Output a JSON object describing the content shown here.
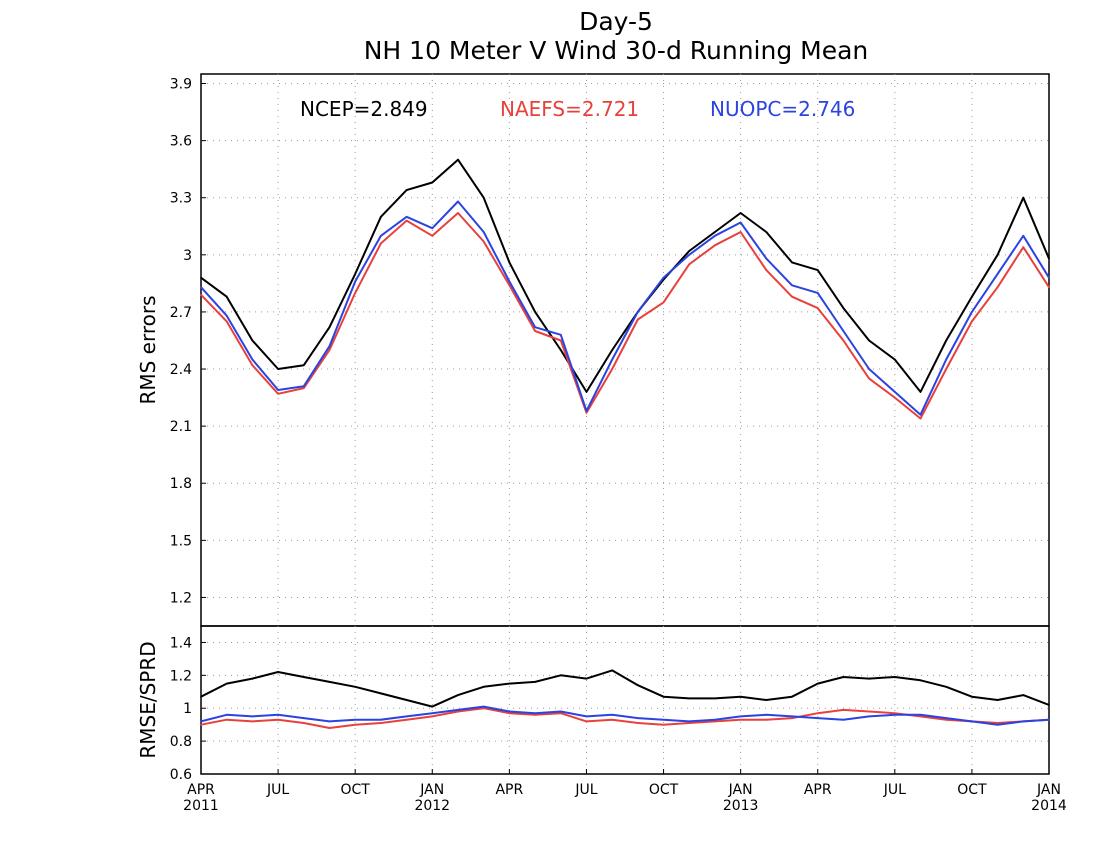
{
  "title_line1": "Day-5",
  "title_line2": "NH 10 Meter V Wind 30-d Running Mean",
  "colors": {
    "ncep": "#000000",
    "naefs": "#e8413c",
    "nuopc": "#2b43e0",
    "grid": "#9a9a9a"
  },
  "chart_data": [
    {
      "type": "line",
      "panel": "top",
      "ylabel": "RMS errors",
      "ylim": [
        1.05,
        3.95
      ],
      "yticks": [
        "1.2",
        "1.5",
        "1.8",
        "2.1",
        "2.4",
        "2.7",
        "3",
        "3.3",
        "3.6",
        "3.9"
      ],
      "legend": [
        {
          "label": "NCEP=2.849",
          "color": "#000000"
        },
        {
          "label": "NAEFS=2.721",
          "color": "#e8413c"
        },
        {
          "label": "NUOPC=2.746",
          "color": "#2b43e0"
        }
      ],
      "x": [
        "2011-04",
        "2011-05",
        "2011-06",
        "2011-07",
        "2011-08",
        "2011-09",
        "2011-10",
        "2011-11",
        "2011-12",
        "2012-01",
        "2012-02",
        "2012-03",
        "2012-04",
        "2012-05",
        "2012-06",
        "2012-07",
        "2012-08",
        "2012-09",
        "2012-10",
        "2012-11",
        "2012-12",
        "2013-01",
        "2013-02",
        "2013-03",
        "2013-04",
        "2013-05",
        "2013-06",
        "2013-07",
        "2013-08",
        "2013-09",
        "2013-10",
        "2013-11",
        "2013-12",
        "2014-01"
      ],
      "series": [
        {
          "name": "NCEP",
          "color": "#000000",
          "values": [
            2.88,
            2.78,
            2.55,
            2.4,
            2.42,
            2.62,
            2.9,
            3.2,
            3.34,
            3.38,
            3.5,
            3.3,
            2.96,
            2.7,
            2.5,
            2.28,
            2.5,
            2.7,
            2.87,
            3.02,
            3.12,
            3.22,
            3.12,
            2.96,
            2.92,
            2.72,
            2.55,
            2.45,
            2.28,
            2.55,
            2.78,
            3.0,
            3.3,
            2.98
          ]
        },
        {
          "name": "NAEFS",
          "color": "#e8413c",
          "values": [
            2.79,
            2.65,
            2.42,
            2.27,
            2.3,
            2.5,
            2.8,
            3.06,
            3.18,
            3.1,
            3.22,
            3.07,
            2.84,
            2.6,
            2.55,
            2.17,
            2.4,
            2.66,
            2.75,
            2.95,
            3.05,
            3.12,
            2.92,
            2.78,
            2.72,
            2.55,
            2.35,
            2.25,
            2.14,
            2.4,
            2.65,
            2.83,
            3.04,
            2.83
          ]
        },
        {
          "name": "NUOPC",
          "color": "#2b43e0",
          "values": [
            2.83,
            2.68,
            2.45,
            2.29,
            2.31,
            2.52,
            2.86,
            3.1,
            3.2,
            3.14,
            3.28,
            3.12,
            2.86,
            2.62,
            2.58,
            2.18,
            2.45,
            2.7,
            2.88,
            3.0,
            3.1,
            3.17,
            2.98,
            2.84,
            2.8,
            2.6,
            2.4,
            2.28,
            2.16,
            2.45,
            2.7,
            2.9,
            3.1,
            2.88
          ]
        }
      ]
    },
    {
      "type": "line",
      "panel": "bottom",
      "ylabel": "RMSE/SPRD",
      "ylim": [
        0.6,
        1.5
      ],
      "yticks": [
        "0.6",
        "0.8",
        "1",
        "1.2",
        "1.4"
      ],
      "x": [
        "2011-04",
        "2011-05",
        "2011-06",
        "2011-07",
        "2011-08",
        "2011-09",
        "2011-10",
        "2011-11",
        "2011-12",
        "2012-01",
        "2012-02",
        "2012-03",
        "2012-04",
        "2012-05",
        "2012-06",
        "2012-07",
        "2012-08",
        "2012-09",
        "2012-10",
        "2012-11",
        "2012-12",
        "2013-01",
        "2013-02",
        "2013-03",
        "2013-04",
        "2013-05",
        "2013-06",
        "2013-07",
        "2013-08",
        "2013-09",
        "2013-10",
        "2013-11",
        "2013-12",
        "2014-01"
      ],
      "xtick_labels": [
        {
          "month": "APR",
          "year": "2011"
        },
        {
          "month": "JUL",
          "year": ""
        },
        {
          "month": "OCT",
          "year": ""
        },
        {
          "month": "JAN",
          "year": "2012"
        },
        {
          "month": "APR",
          "year": ""
        },
        {
          "month": "JUL",
          "year": ""
        },
        {
          "month": "OCT",
          "year": ""
        },
        {
          "month": "JAN",
          "year": "2013"
        },
        {
          "month": "APR",
          "year": ""
        },
        {
          "month": "JUL",
          "year": ""
        },
        {
          "month": "OCT",
          "year": ""
        },
        {
          "month": "JAN",
          "year": "2014"
        }
      ],
      "series": [
        {
          "name": "NCEP",
          "color": "#000000",
          "values": [
            1.07,
            1.15,
            1.18,
            1.22,
            1.19,
            1.16,
            1.13,
            1.09,
            1.05,
            1.01,
            1.08,
            1.13,
            1.15,
            1.16,
            1.2,
            1.18,
            1.23,
            1.14,
            1.07,
            1.06,
            1.06,
            1.07,
            1.05,
            1.07,
            1.15,
            1.19,
            1.18,
            1.19,
            1.17,
            1.13,
            1.07,
            1.05,
            1.08,
            1.02
          ]
        },
        {
          "name": "NAEFS",
          "color": "#e8413c",
          "values": [
            0.9,
            0.93,
            0.92,
            0.93,
            0.91,
            0.88,
            0.9,
            0.91,
            0.93,
            0.95,
            0.98,
            1.0,
            0.97,
            0.96,
            0.97,
            0.92,
            0.93,
            0.91,
            0.9,
            0.91,
            0.92,
            0.93,
            0.93,
            0.94,
            0.97,
            0.99,
            0.98,
            0.97,
            0.95,
            0.93,
            0.92,
            0.91,
            0.92,
            0.93
          ]
        },
        {
          "name": "NUOPC",
          "color": "#2b43e0",
          "values": [
            0.92,
            0.96,
            0.95,
            0.96,
            0.94,
            0.92,
            0.93,
            0.93,
            0.95,
            0.97,
            0.99,
            1.01,
            0.98,
            0.97,
            0.98,
            0.95,
            0.96,
            0.94,
            0.93,
            0.92,
            0.93,
            0.95,
            0.96,
            0.95,
            0.94,
            0.93,
            0.95,
            0.96,
            0.96,
            0.94,
            0.92,
            0.9,
            0.92,
            0.93
          ]
        }
      ]
    }
  ]
}
